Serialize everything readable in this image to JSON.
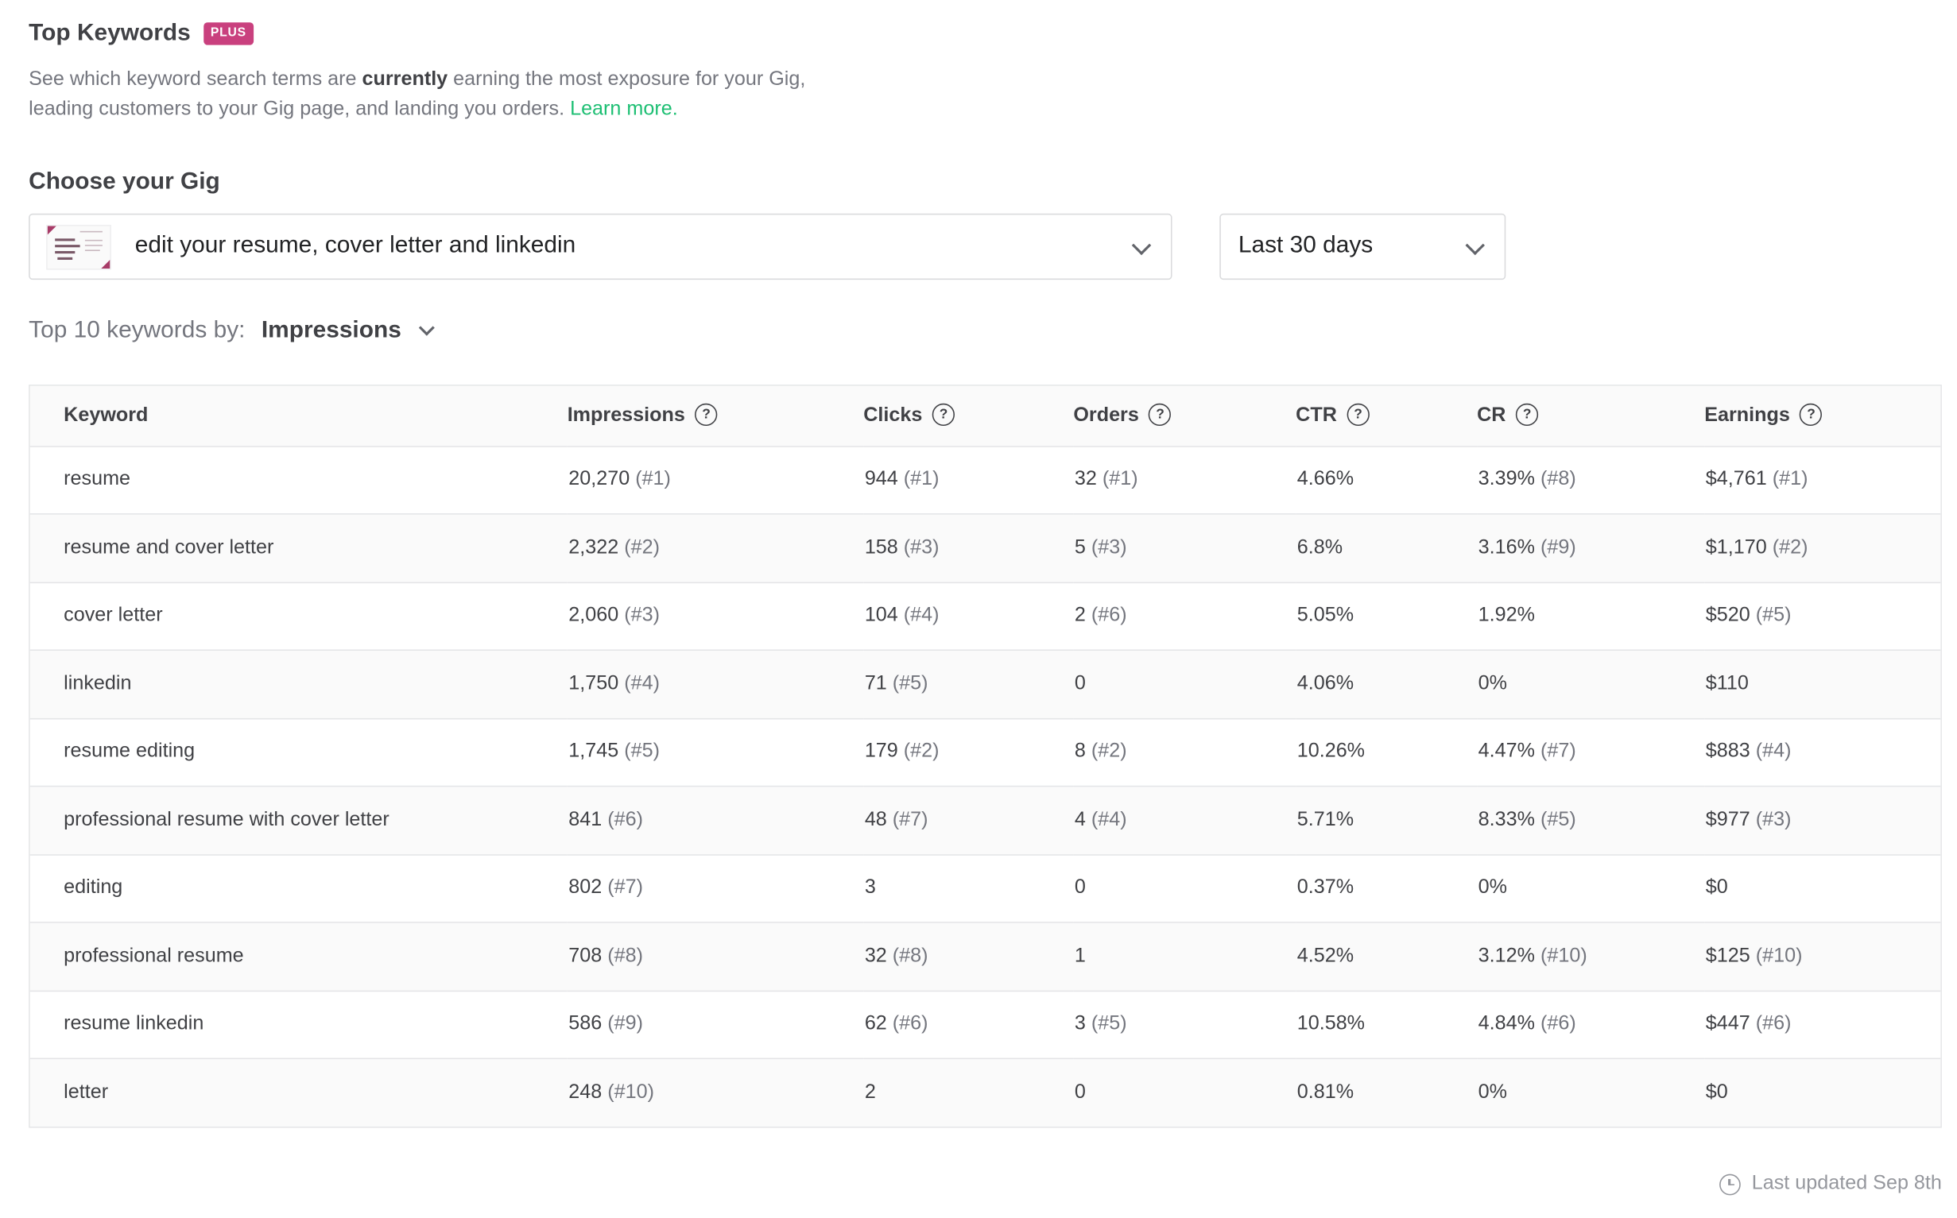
{
  "header": {
    "title": "Top Keywords",
    "badge": "PLUS",
    "description_before": "See which keyword search terms are ",
    "description_bold": "currently",
    "description_after": " earning the most exposure for your Gig, leading customers to your Gig page, and landing you orders. ",
    "learn_more": "Learn more."
  },
  "gig_chooser": {
    "label": "Choose your Gig",
    "selected_gig": "edit your resume, cover letter and linkedin",
    "thumbnail_icon": "gig-thumbnail",
    "period": "Last 30 days"
  },
  "sort": {
    "label": "Top 10 keywords by:",
    "value": "Impressions"
  },
  "table": {
    "columns": [
      {
        "label": "Keyword",
        "help": false
      },
      {
        "label": "Impressions",
        "help": true
      },
      {
        "label": "Clicks",
        "help": true
      },
      {
        "label": "Orders",
        "help": true
      },
      {
        "label": "CTR",
        "help": true
      },
      {
        "label": "CR",
        "help": true
      },
      {
        "label": "Earnings",
        "help": true
      }
    ],
    "help_icon": "?",
    "rows": [
      {
        "keyword": "resume",
        "impressions": "20,270",
        "impressions_rank": "(#1)",
        "clicks": "944",
        "clicks_rank": "(#1)",
        "orders": "32",
        "orders_rank": "(#1)",
        "ctr": "4.66%",
        "cr": "3.39%",
        "cr_rank": "(#8)",
        "earnings": "$4,761",
        "earnings_rank": "(#1)"
      },
      {
        "keyword": "resume and cover letter",
        "impressions": "2,322",
        "impressions_rank": "(#2)",
        "clicks": "158",
        "clicks_rank": "(#3)",
        "orders": "5",
        "orders_rank": "(#3)",
        "ctr": "6.8%",
        "cr": "3.16%",
        "cr_rank": "(#9)",
        "earnings": "$1,170",
        "earnings_rank": "(#2)"
      },
      {
        "keyword": "cover letter",
        "impressions": "2,060",
        "impressions_rank": "(#3)",
        "clicks": "104",
        "clicks_rank": "(#4)",
        "orders": "2",
        "orders_rank": "(#6)",
        "ctr": "5.05%",
        "cr": "1.92%",
        "cr_rank": "",
        "earnings": "$520",
        "earnings_rank": "(#5)"
      },
      {
        "keyword": "linkedin",
        "impressions": "1,750",
        "impressions_rank": "(#4)",
        "clicks": "71",
        "clicks_rank": "(#5)",
        "orders": "0",
        "orders_rank": "",
        "ctr": "4.06%",
        "cr": "0%",
        "cr_rank": "",
        "earnings": "$110",
        "earnings_rank": ""
      },
      {
        "keyword": "resume editing",
        "impressions": "1,745",
        "impressions_rank": "(#5)",
        "clicks": "179",
        "clicks_rank": "(#2)",
        "orders": "8",
        "orders_rank": "(#2)",
        "ctr": "10.26%",
        "cr": "4.47%",
        "cr_rank": "(#7)",
        "earnings": "$883",
        "earnings_rank": "(#4)"
      },
      {
        "keyword": "professional resume with cover letter",
        "impressions": "841",
        "impressions_rank": "(#6)",
        "clicks": "48",
        "clicks_rank": "(#7)",
        "orders": "4",
        "orders_rank": "(#4)",
        "ctr": "5.71%",
        "cr": "8.33%",
        "cr_rank": "(#5)",
        "earnings": "$977",
        "earnings_rank": "(#3)"
      },
      {
        "keyword": "editing",
        "impressions": "802",
        "impressions_rank": "(#7)",
        "clicks": "3",
        "clicks_rank": "",
        "orders": "0",
        "orders_rank": "",
        "ctr": "0.37%",
        "cr": "0%",
        "cr_rank": "",
        "earnings": "$0",
        "earnings_rank": ""
      },
      {
        "keyword": "professional resume",
        "impressions": "708",
        "impressions_rank": "(#8)",
        "clicks": "32",
        "clicks_rank": "(#8)",
        "orders": "1",
        "orders_rank": "",
        "ctr": "4.52%",
        "cr": "3.12%",
        "cr_rank": "(#10)",
        "earnings": "$125",
        "earnings_rank": "(#10)"
      },
      {
        "keyword": "resume linkedin",
        "impressions": "586",
        "impressions_rank": "(#9)",
        "clicks": "62",
        "clicks_rank": "(#6)",
        "orders": "3",
        "orders_rank": "(#5)",
        "ctr": "10.58%",
        "cr": "4.84%",
        "cr_rank": "(#6)",
        "earnings": "$447",
        "earnings_rank": "(#6)"
      },
      {
        "keyword": "letter",
        "impressions": "248",
        "impressions_rank": "(#10)",
        "clicks": "2",
        "clicks_rank": "",
        "orders": "0",
        "orders_rank": "",
        "ctr": "0.81%",
        "cr": "0%",
        "cr_rank": "",
        "earnings": "$0",
        "earnings_rank": ""
      }
    ]
  },
  "footer": {
    "last_updated": "Last updated Sep 8th"
  },
  "colors": {
    "brand_green": "#1dbf73",
    "plus_badge": "#c9407e",
    "text_primary": "#404145",
    "text_muted": "#74767e",
    "border": "#e4e5e7"
  }
}
